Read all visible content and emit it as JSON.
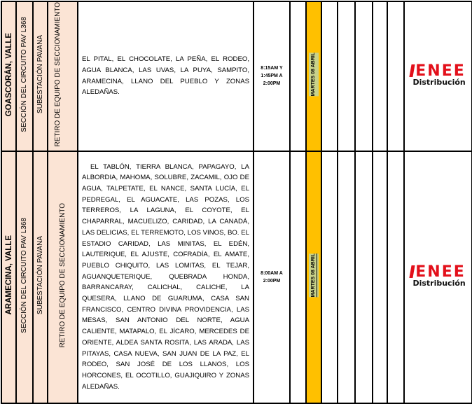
{
  "rows": [
    {
      "municipality": "GOASCORÁN, VALLE",
      "section": "SECCIÓN DEL CIRCUITO PAV L368",
      "substation": "SUBESTACIÓN PAVANA",
      "work": "RETIRO DE EQUIPO DE SECCIONAMIENTO",
      "places": "EL PITAL, EL CHOCOLATE, LA PEÑA, EL RODEO, AGUA BLANCA, LAS UVAS, LA PUYA, SAMPITO, ARAMECINA, LLANO DEL PUEBLO Y ZONAS ALEDAÑAS.",
      "time_lines": [
        "8:15AM Y",
        "1:45PM A",
        "2:00PM"
      ],
      "date": "MARTES 08 ABRIL"
    },
    {
      "municipality": "ARAMECINA, VALLE",
      "section": "SECCIÓN DEL CIRCUITO PAV L368",
      "substation": "SUBESTACIÓN PAVANA",
      "work": "RETIRO DE EQUIPO DE SECCIONAMIENTO",
      "places": "EL TABLÓN, TIERRA BLANCA, PAPAGAYO, LA ALBORDIA, MAHOMA, SOLUBRE, ZACAMIL, OJO DE AGUA, TALPETATE, EL NANCE, SANTA LUCÍA, EL PEDREGAL, EL AGUACATE, LAS POZAS, LOS TERREROS, LA LAGUNA, EL COYOTE, EL CHAPARRAL, MACUELIZO, CARIDAD, LA CANADÁ, LAS DELICIAS, EL TERREMOTO, LOS VINOS, BO. EL ESTADIO CARIDAD, LAS MINITAS, EL EDÉN, LAUTERIQUE, EL AJUSTE, COFRADÍA, EL AMATE, PUEBLO CHIQUITO, LAS LOMITAS, EL TEJAR, AGUANQUETERIQUE, QUEBRADA HONDA, BARRANCARAY, CALICHAL, CALICHE, LA QUESERA, LLANO DE GUARUMA, CASA SAN FRANCISCO, CENTRO DIVINA PROVIDENCIA, LAS MESAS, SAN ANTONIO DEL NORTE, AGUA CALIENTE, MATAPALO, EL JÍCARO, MERCEDES DE ORIENTE, ALDEA SANTA ROSITA, LAS ARADA, LAS PITAYAS, CASA NUEVA, SAN JUAN DE LA PAZ, EL RODEO, SAN JOSÉ DE LOS LLANOS, LOS HORCONES, EL OCOTILLO, GUAJIQUIRO Y ZONAS ALEDAÑAS.",
      "time_lines": [
        "8:00AM A",
        "2:00PM"
      ],
      "date": "MARTES 08 ABRIL"
    }
  ],
  "logo": {
    "top": "ENEE",
    "bottom": "Distribución"
  },
  "colors": {
    "peach": "#fbe4d5",
    "yellow": "#ffc000",
    "brand_red": "#e3101b"
  }
}
